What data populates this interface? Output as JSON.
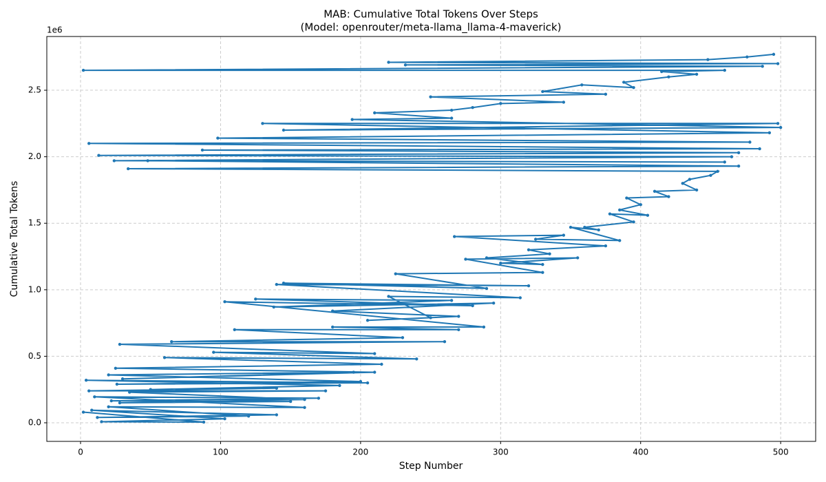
{
  "chart_data": {
    "type": "line",
    "title": "MAB: Cumulative Total Tokens Over Steps",
    "subtitle": "(Model: openrouter/meta-llama_llama-4-maverick)",
    "x_label": "Step Number",
    "y_label": "Cumulative Total Tokens",
    "y_offset_label": "1e6",
    "color": "#1f77b4",
    "grid": true,
    "xlim": [
      -24.1,
      525
    ],
    "ylim": [
      -139750,
      2904000
    ],
    "xticks": [
      0,
      100,
      200,
      300,
      400,
      500
    ],
    "yticks": [
      {
        "value": 0,
        "label": "0.0"
      },
      {
        "value": 500000,
        "label": "0.5"
      },
      {
        "value": 1000000,
        "label": "1.0"
      },
      {
        "value": 1500000,
        "label": "1.5"
      },
      {
        "value": 2000000,
        "label": "2.0"
      },
      {
        "value": 2500000,
        "label": "2.5"
      }
    ],
    "x": [
      2,
      88,
      15,
      103,
      8,
      140,
      12,
      120,
      20,
      160,
      10,
      170,
      22,
      150,
      28,
      160,
      35,
      175,
      6,
      140,
      50,
      185,
      4,
      205,
      26,
      200,
      20,
      195,
      30,
      210,
      25,
      215,
      60,
      240,
      95,
      210,
      28,
      260,
      65,
      230,
      110,
      270,
      180,
      288,
      103,
      280,
      125,
      265,
      138,
      295,
      180,
      270,
      205,
      250,
      220,
      314,
      140,
      320,
      145,
      290,
      225,
      330,
      275,
      355,
      300,
      330,
      290,
      335,
      320,
      375,
      267,
      345,
      325,
      385,
      350,
      370,
      360,
      395,
      378,
      405,
      385,
      400,
      390,
      420,
      410,
      440,
      430,
      435,
      450,
      455,
      34,
      470,
      48,
      460,
      24,
      465,
      13,
      470,
      87,
      485,
      6,
      478,
      98,
      492,
      130,
      498,
      145,
      500,
      194,
      265,
      210,
      265,
      280,
      300,
      345,
      250,
      375,
      330,
      358,
      395,
      388,
      420,
      440,
      415,
      460,
      2,
      487,
      232,
      498,
      220,
      448,
      476,
      495
    ],
    "values": [
      80000,
      5000,
      8000,
      30000,
      95000,
      60000,
      40000,
      50000,
      120000,
      115000,
      195000,
      185000,
      165000,
      160000,
      150000,
      175000,
      230000,
      240000,
      240000,
      260000,
      250000,
      280000,
      320000,
      300000,
      290000,
      310000,
      360000,
      380000,
      330000,
      380000,
      410000,
      440000,
      490000,
      480000,
      530000,
      520000,
      590000,
      610000,
      610000,
      640000,
      700000,
      700000,
      720000,
      720000,
      910000,
      880000,
      930000,
      920000,
      870000,
      900000,
      840000,
      800000,
      770000,
      790000,
      950000,
      940000,
      1040000,
      1030000,
      1050000,
      1010000,
      1120000,
      1130000,
      1230000,
      1240000,
      1200000,
      1190000,
      1240000,
      1270000,
      1300000,
      1330000,
      1400000,
      1410000,
      1380000,
      1370000,
      1470000,
      1450000,
      1470000,
      1510000,
      1570000,
      1560000,
      1600000,
      1640000,
      1690000,
      1700000,
      1740000,
      1750000,
      1800000,
      1830000,
      1860000,
      1890000,
      1910000,
      1930000,
      1970000,
      1960000,
      1970000,
      2000000,
      2010000,
      2030000,
      2050000,
      2060000,
      2100000,
      2110000,
      2140000,
      2180000,
      2250000,
      2250000,
      2200000,
      2220000,
      2280000,
      2290000,
      2330000,
      2350000,
      2370000,
      2400000,
      2410000,
      2450000,
      2470000,
      2490000,
      2540000,
      2520000,
      2560000,
      2600000,
      2620000,
      2640000,
      2650000,
      2650000,
      2680000,
      2690000,
      2700000,
      2710000,
      2730000,
      2750000,
      2770000
    ]
  }
}
